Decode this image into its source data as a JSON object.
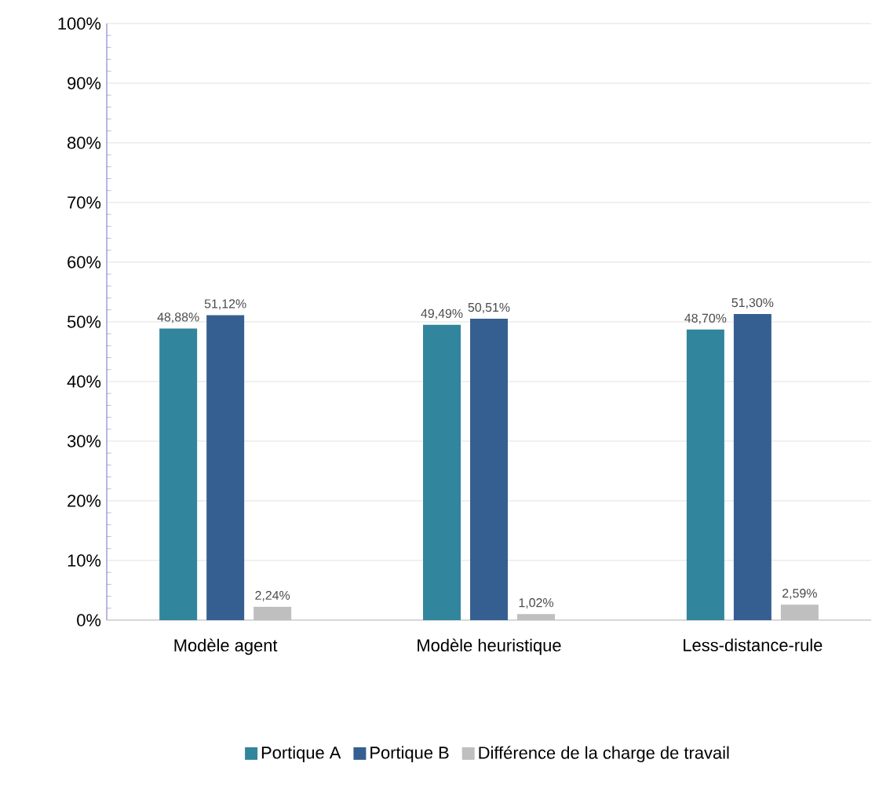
{
  "chart_data": {
    "type": "bar",
    "categories": [
      "Modèle agent",
      "Modèle heuristique",
      "Less-distance-rule"
    ],
    "series": [
      {
        "name": "Portique A",
        "color": "#31859c",
        "values": [
          48.88,
          49.49,
          48.7
        ],
        "value_labels": [
          "48,88%",
          "49,49%",
          "48,70%"
        ]
      },
      {
        "name": "Portique B",
        "color": "#365f91",
        "values": [
          51.12,
          50.51,
          51.3
        ],
        "value_labels": [
          "51,12%",
          "50,51%",
          "51,30%"
        ]
      },
      {
        "name": "Différence de la charge de travail",
        "color": "#bfbfbf",
        "values": [
          2.24,
          1.02,
          2.59
        ],
        "value_labels": [
          "2,24%",
          "1,02%",
          "2,59%"
        ]
      }
    ],
    "ylim": [
      0,
      100
    ],
    "yticks": [
      {
        "value": 0,
        "label": "0%"
      },
      {
        "value": 10,
        "label": "10%"
      },
      {
        "value": 20,
        "label": "20%"
      },
      {
        "value": 30,
        "label": "30%"
      },
      {
        "value": 40,
        "label": "40%"
      },
      {
        "value": 50,
        "label": "50%"
      },
      {
        "value": 60,
        "label": "60%"
      },
      {
        "value": 70,
        "label": "70%"
      },
      {
        "value": 80,
        "label": "80%"
      },
      {
        "value": 90,
        "label": "90%"
      },
      {
        "value": 100,
        "label": "100%"
      }
    ],
    "grid": "y",
    "legend": "bottom"
  }
}
